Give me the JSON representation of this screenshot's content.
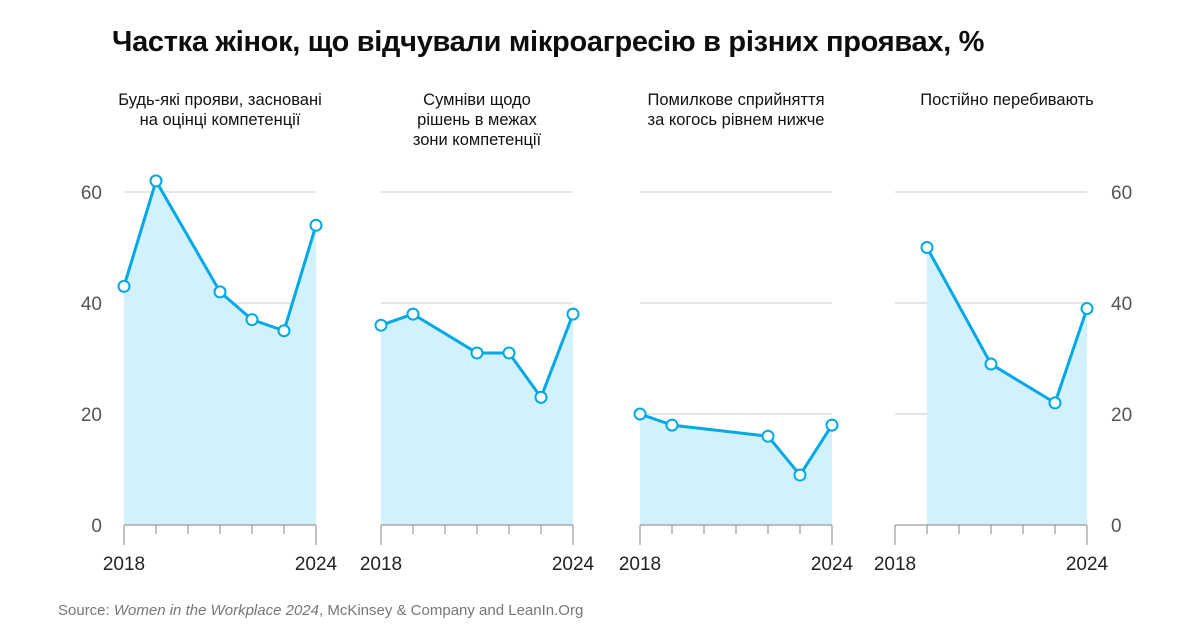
{
  "title": "Частка жінок, що відчували мікроагресію в різних проявах, %",
  "source": {
    "prefix": "Source: ",
    "italic": "Women in the Workplace 2024",
    "suffix": ", McKinsey & Company and LeanIn.Org"
  },
  "colors": {
    "line": "#00a9e6",
    "fill": "#d2f1fc",
    "grid": "#d6d6d6",
    "axis": "#9a9a9a",
    "tick_label": "#555555"
  },
  "chart_data": {
    "type": "area",
    "title": "Частка жінок, що відчували мікроагресію в різних проявах, %",
    "ylim": [
      0,
      60
    ],
    "yticks": [
      0,
      20,
      40,
      60
    ],
    "xlim": [
      2018,
      2024
    ],
    "xtick_labels": [
      "2018",
      "2024"
    ],
    "grid": true,
    "y_axis_labels": "left-and-right",
    "panels": [
      {
        "name": "Будь-які прояви, засновані на оцінці компетенції",
        "title_lines": [
          "Будь-які прояви, засновані",
          "на оцінці компетенції"
        ],
        "x": [
          2018,
          2019,
          2021,
          2022,
          2023,
          2024
        ],
        "y": [
          43,
          62,
          42,
          37,
          35,
          54
        ]
      },
      {
        "name": "Сумніви щодо рішень в межах зони компетенції",
        "title_lines": [
          "Сумніви щодо",
          "рішень в межах",
          "зони компетенції"
        ],
        "x": [
          2018,
          2019,
          2021,
          2022,
          2023,
          2024
        ],
        "y": [
          36,
          38,
          31,
          31,
          23,
          38
        ]
      },
      {
        "name": "Помилкове сприйняття за когось рівнем нижче",
        "title_lines": [
          "Помилкове сприйняття",
          "за когось рівнем нижче"
        ],
        "x": [
          2018,
          2019,
          2022,
          2023,
          2024
        ],
        "y": [
          20,
          18,
          16,
          9,
          18
        ]
      },
      {
        "name": "Постійно перебивають",
        "title_lines": [
          "Постійно перебивають"
        ],
        "x": [
          2019,
          2021,
          2023,
          2024
        ],
        "y": [
          50,
          29,
          22,
          39
        ]
      }
    ]
  }
}
